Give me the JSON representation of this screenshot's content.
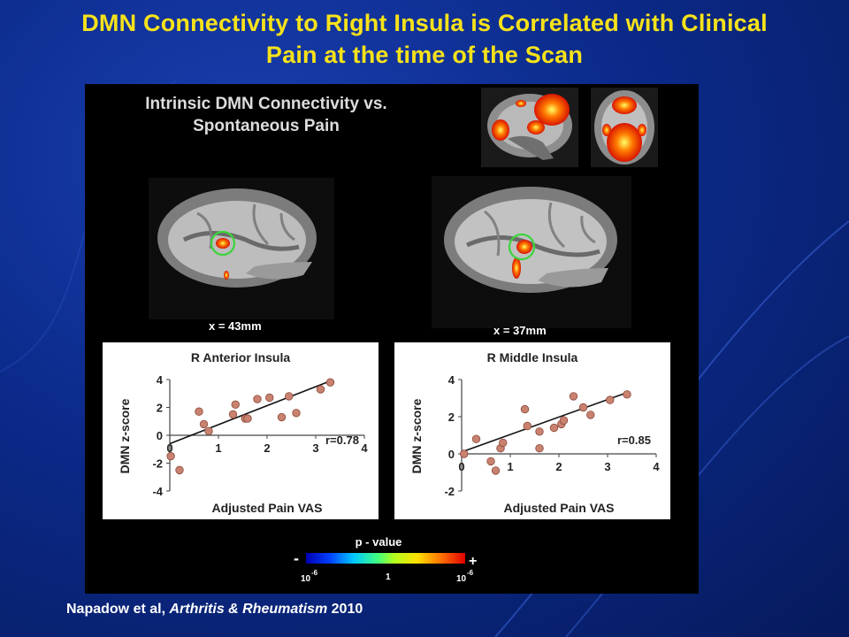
{
  "title": {
    "line1": "DMN Connectivity to Right Insula is Correlated with Clinical",
    "line2": "Pain at the time of the Scan"
  },
  "figure": {
    "heading_line1": "Intrinsic DMN Connectivity vs.",
    "heading_line2": "Spontaneous Pain",
    "slice_left": "x = 43mm",
    "slice_right": "x = 37mm",
    "colorbar": {
      "title": "p - value",
      "minus": "-",
      "plus": "+",
      "tick_left_base": "10",
      "tick_left_exp": "-6",
      "tick_mid": "1",
      "tick_right_base": "10",
      "tick_right_exp": "-6"
    }
  },
  "chart_data": [
    {
      "type": "scatter",
      "title": "R Anterior Insula",
      "xlabel": "Adjusted Pain VAS",
      "ylabel": "DMN z-score",
      "xlim": [
        0,
        4
      ],
      "ylim": [
        -4,
        4
      ],
      "xticks": [
        "0",
        "1",
        "2",
        "3",
        "4"
      ],
      "yticks": [
        "4",
        "2",
        "0",
        "-2",
        "-4"
      ],
      "annotation": "r=0.78",
      "points": [
        [
          0.02,
          -1.5
        ],
        [
          0.2,
          -2.5
        ],
        [
          0.6,
          1.7
        ],
        [
          0.7,
          0.8
        ],
        [
          0.8,
          0.3
        ],
        [
          1.3,
          1.5
        ],
        [
          1.35,
          2.2
        ],
        [
          1.55,
          1.2
        ],
        [
          1.6,
          1.2
        ],
        [
          1.8,
          2.6
        ],
        [
          2.05,
          2.7
        ],
        [
          2.3,
          1.3
        ],
        [
          2.45,
          2.8
        ],
        [
          2.6,
          1.6
        ],
        [
          3.1,
          3.3
        ],
        [
          3.3,
          3.8
        ]
      ],
      "fit": [
        [
          0,
          -0.6
        ],
        [
          3.3,
          3.9
        ]
      ]
    },
    {
      "type": "scatter",
      "title": "R Middle Insula",
      "xlabel": "Adjusted Pain VAS",
      "ylabel": "DMN z-score",
      "xlim": [
        0,
        4
      ],
      "ylim": [
        -2,
        4
      ],
      "xticks": [
        "0",
        "1",
        "2",
        "3",
        "4"
      ],
      "yticks": [
        "4",
        "2",
        "0",
        "-2"
      ],
      "annotation": "r=0.85",
      "points": [
        [
          0.05,
          0.0
        ],
        [
          0.3,
          0.8
        ],
        [
          0.6,
          -0.4
        ],
        [
          0.7,
          -0.9
        ],
        [
          0.8,
          0.3
        ],
        [
          0.85,
          0.6
        ],
        [
          1.3,
          2.4
        ],
        [
          1.35,
          1.5
        ],
        [
          1.6,
          1.2
        ],
        [
          1.6,
          0.3
        ],
        [
          1.9,
          1.4
        ],
        [
          2.05,
          1.6
        ],
        [
          2.1,
          1.8
        ],
        [
          2.3,
          3.1
        ],
        [
          2.5,
          2.5
        ],
        [
          2.65,
          2.1
        ],
        [
          3.05,
          2.9
        ],
        [
          3.4,
          3.2
        ]
      ],
      "fit": [
        [
          0,
          0.1
        ],
        [
          3.4,
          3.3
        ]
      ]
    }
  ],
  "citation": {
    "authors": "Napadow et al,",
    "journal": "Arthritis & Rheumatism",
    "year": "2010"
  }
}
